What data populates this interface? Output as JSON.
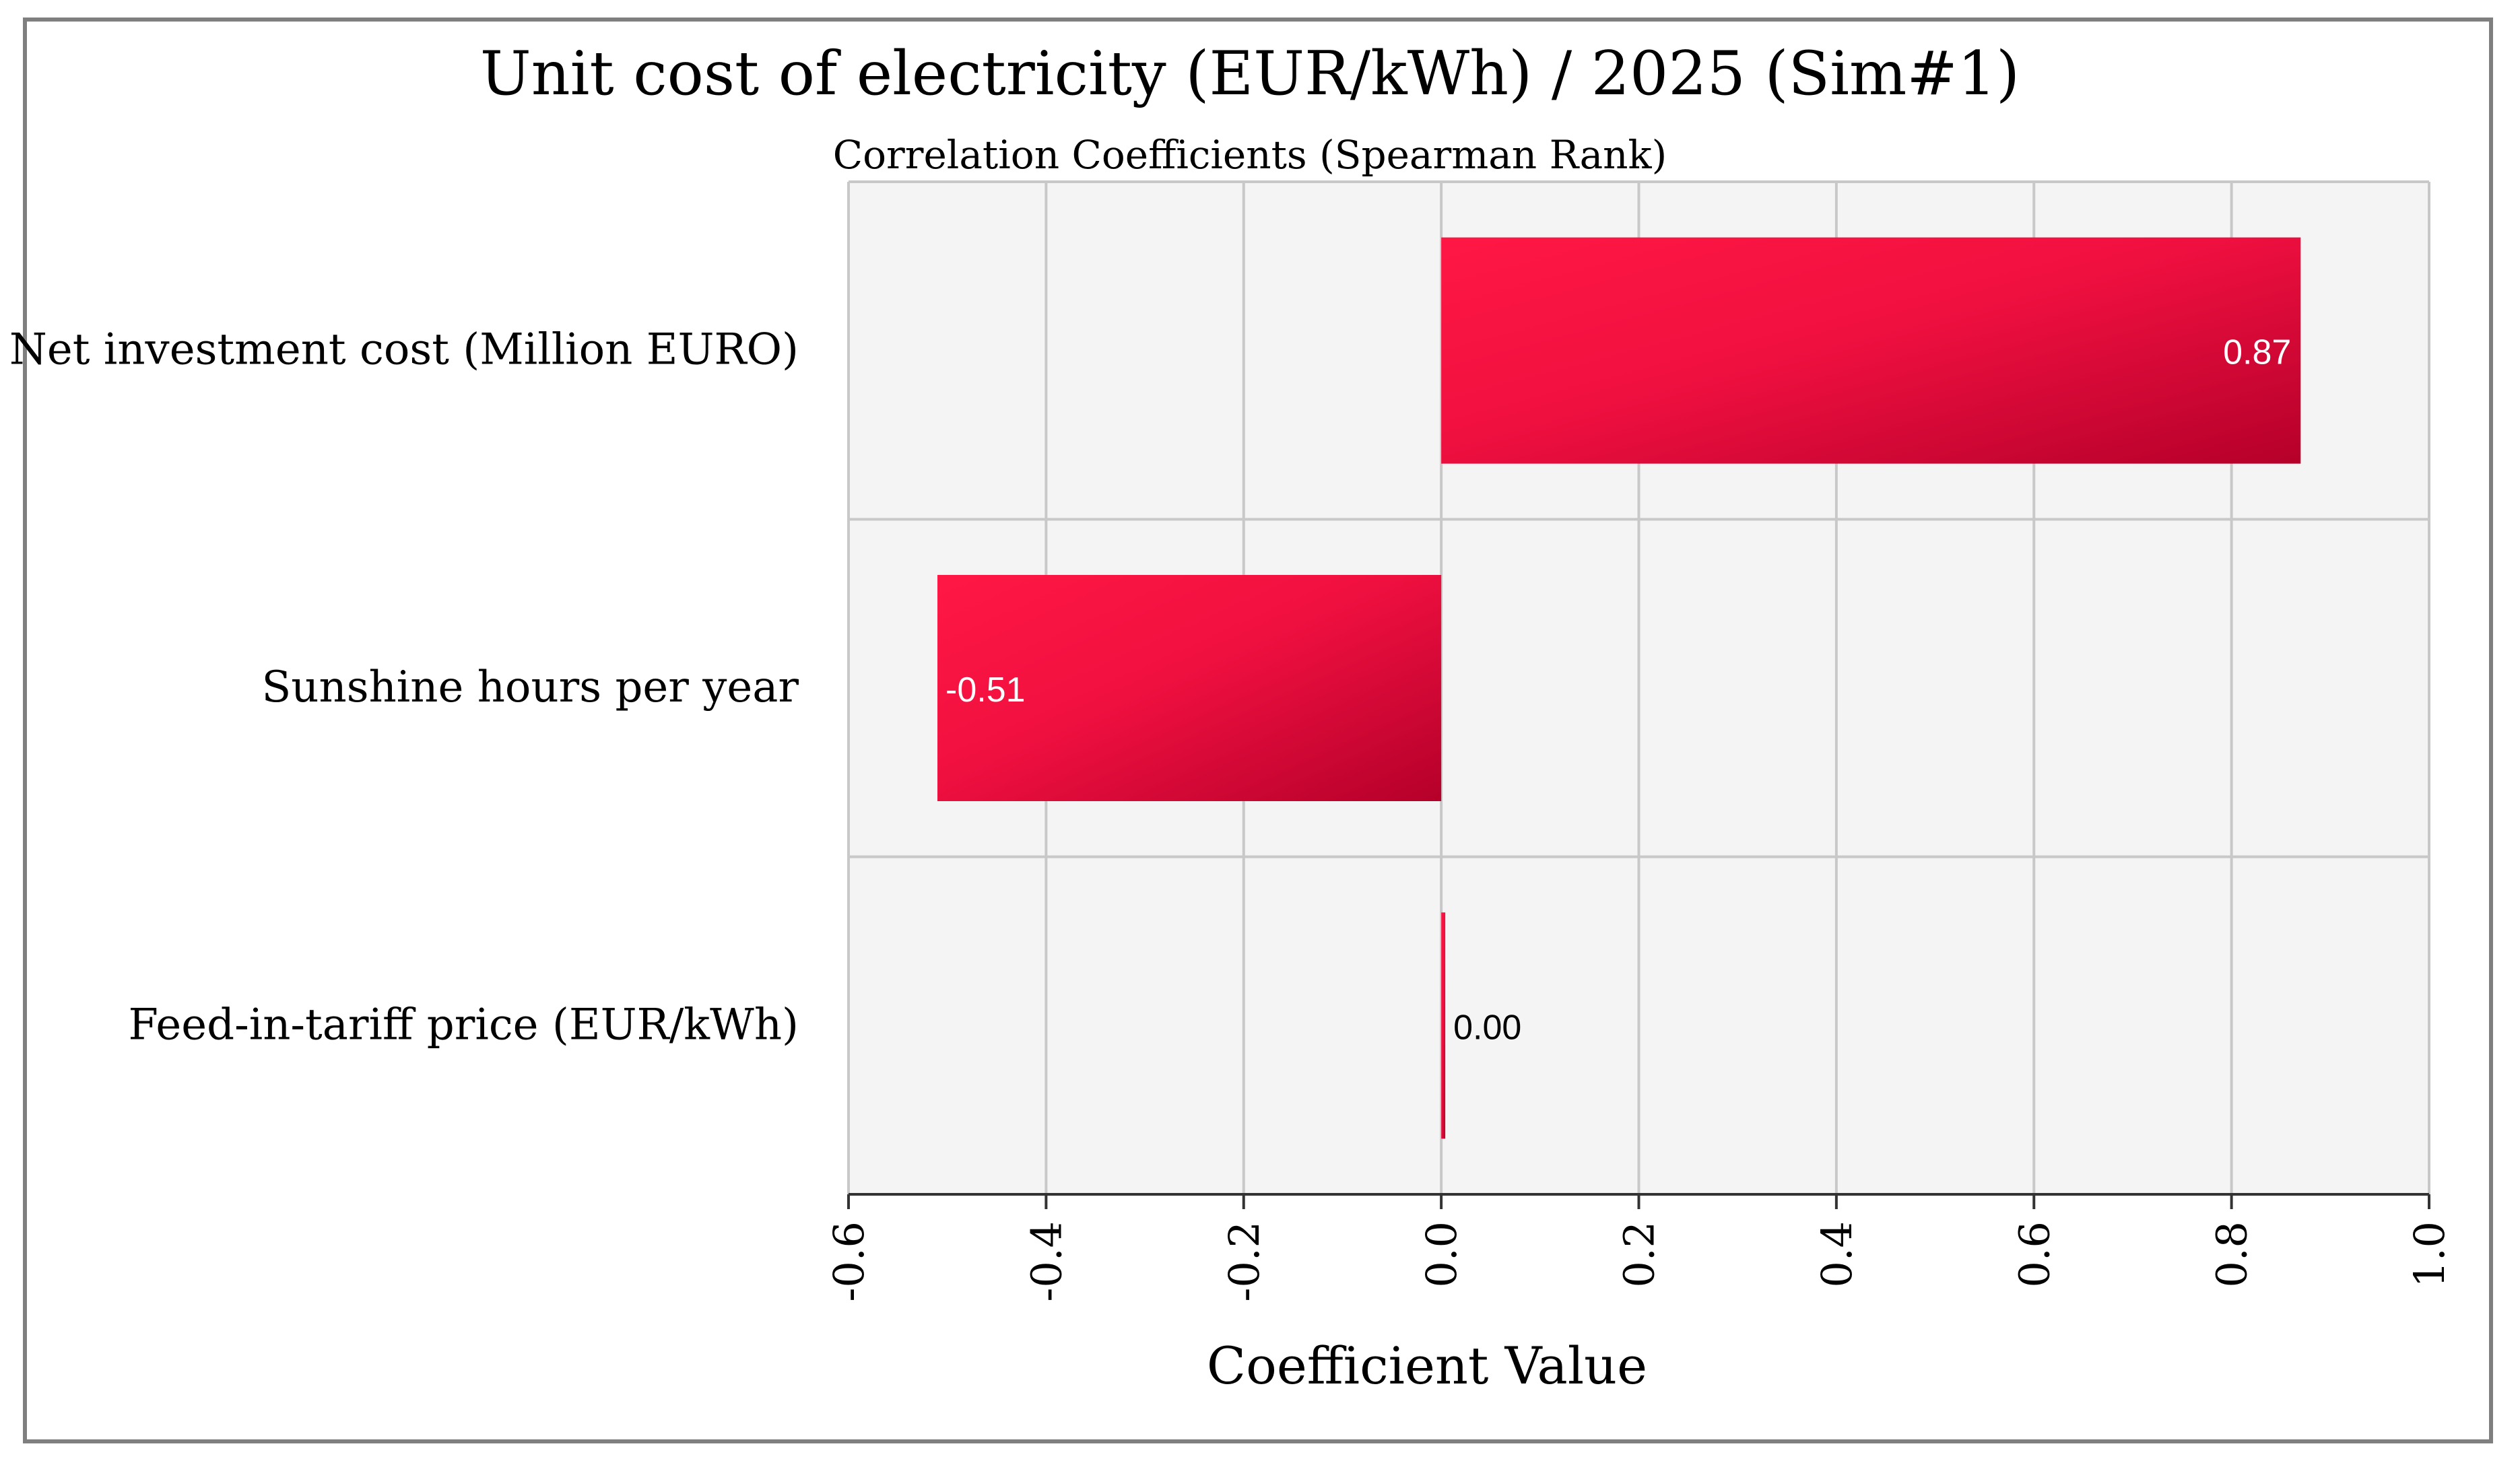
{
  "chart_data": {
    "type": "bar",
    "orientation": "horizontal",
    "title": "Unit cost of electricity (EUR/kWh) / 2025 (Sim#1)",
    "subtitle": "Correlation Coefficients (Spearman Rank)",
    "xlabel": "Coefficient Value",
    "ylabel": "",
    "xlim": [
      -0.6,
      1.0
    ],
    "ticks": [
      "-0.6",
      "-0.4",
      "-0.2",
      "0.0",
      "0.2",
      "0.4",
      "0.6",
      "0.8",
      "1.0"
    ],
    "tick_values": [
      -0.6,
      -0.4,
      -0.2,
      0.0,
      0.2,
      0.4,
      0.6,
      0.8,
      1.0
    ],
    "categories": [
      "Net investment cost (Million EURO)",
      "Sunshine hours per year",
      "Feed-in-tariff price (EUR/kWh)"
    ],
    "values": [
      0.87,
      -0.51,
      0.0
    ],
    "value_labels": [
      "0.87",
      "-0.51",
      "0.00"
    ],
    "grid": true,
    "legend": "none",
    "colors": {
      "bar_light": "#ff1744",
      "bar_dark": "#b5002a",
      "plot_bg": "#f4f4f4",
      "grid": "#c8c8c8",
      "frame": "#7f7f7f"
    }
  }
}
